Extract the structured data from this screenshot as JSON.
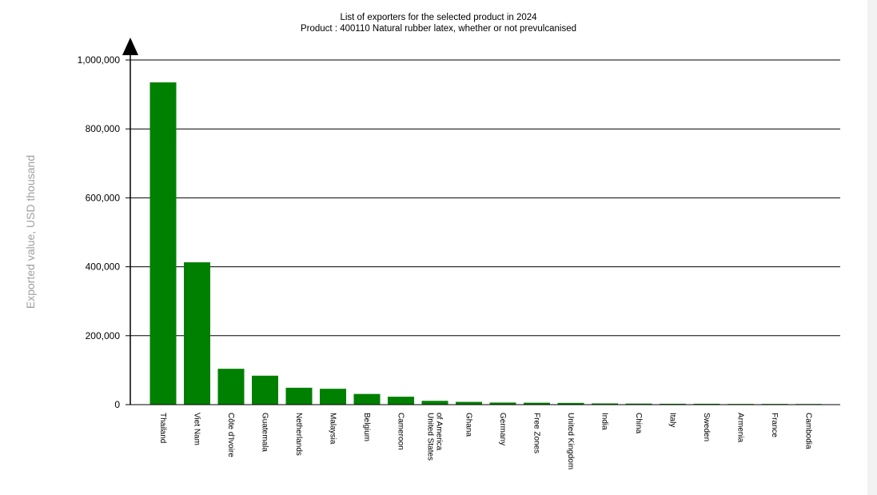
{
  "chart_data": {
    "type": "bar",
    "title": "List of exporters for the selected product in 2024",
    "subtitle": "Product : 400110 Natural rubber latex, whether or not prevulcanised",
    "xlabel": "",
    "ylabel": "Exported value, USD thousand",
    "ylim": [
      0,
      1000000
    ],
    "yticks": [
      0,
      200000,
      400000,
      600000,
      800000,
      1000000
    ],
    "ytick_labels": [
      "0",
      "200,000",
      "400,000",
      "600,000",
      "800,000",
      "1,000,000"
    ],
    "grid": true,
    "bar_color": "#008000",
    "categories": [
      "Thailand",
      "Viet Nam",
      "Côte d'Ivoire",
      "Guatemala",
      "Netherlands",
      "Malaysia",
      "Belgium",
      "Cameroon",
      "United States of America",
      "Ghana",
      "Germany",
      "Free Zones",
      "United Kingdom",
      "India",
      "China",
      "Italy",
      "Sweden",
      "Armenia",
      "France",
      "Cambodia"
    ],
    "category_lines": [
      [
        "Thailand"
      ],
      [
        "Viet Nam"
      ],
      [
        "Côte d'Ivoire"
      ],
      [
        "Guatemala"
      ],
      [
        "Netherlands"
      ],
      [
        "Malaysia"
      ],
      [
        "Belgium"
      ],
      [
        "Cameroon"
      ],
      [
        "United States",
        "of America"
      ],
      [
        "Ghana"
      ],
      [
        "Germany"
      ],
      [
        "Free Zones"
      ],
      [
        "United Kingdom"
      ],
      [
        "India"
      ],
      [
        "China"
      ],
      [
        "Italy"
      ],
      [
        "Sweden"
      ],
      [
        "Armenia"
      ],
      [
        "France"
      ],
      [
        "Cambodia"
      ]
    ],
    "values": [
      935000,
      413000,
      104000,
      84000,
      49000,
      46000,
      31000,
      23000,
      11000,
      8000,
      6000,
      5500,
      5000,
      3500,
      3000,
      2500,
      2500,
      2000,
      2000,
      1800
    ]
  }
}
